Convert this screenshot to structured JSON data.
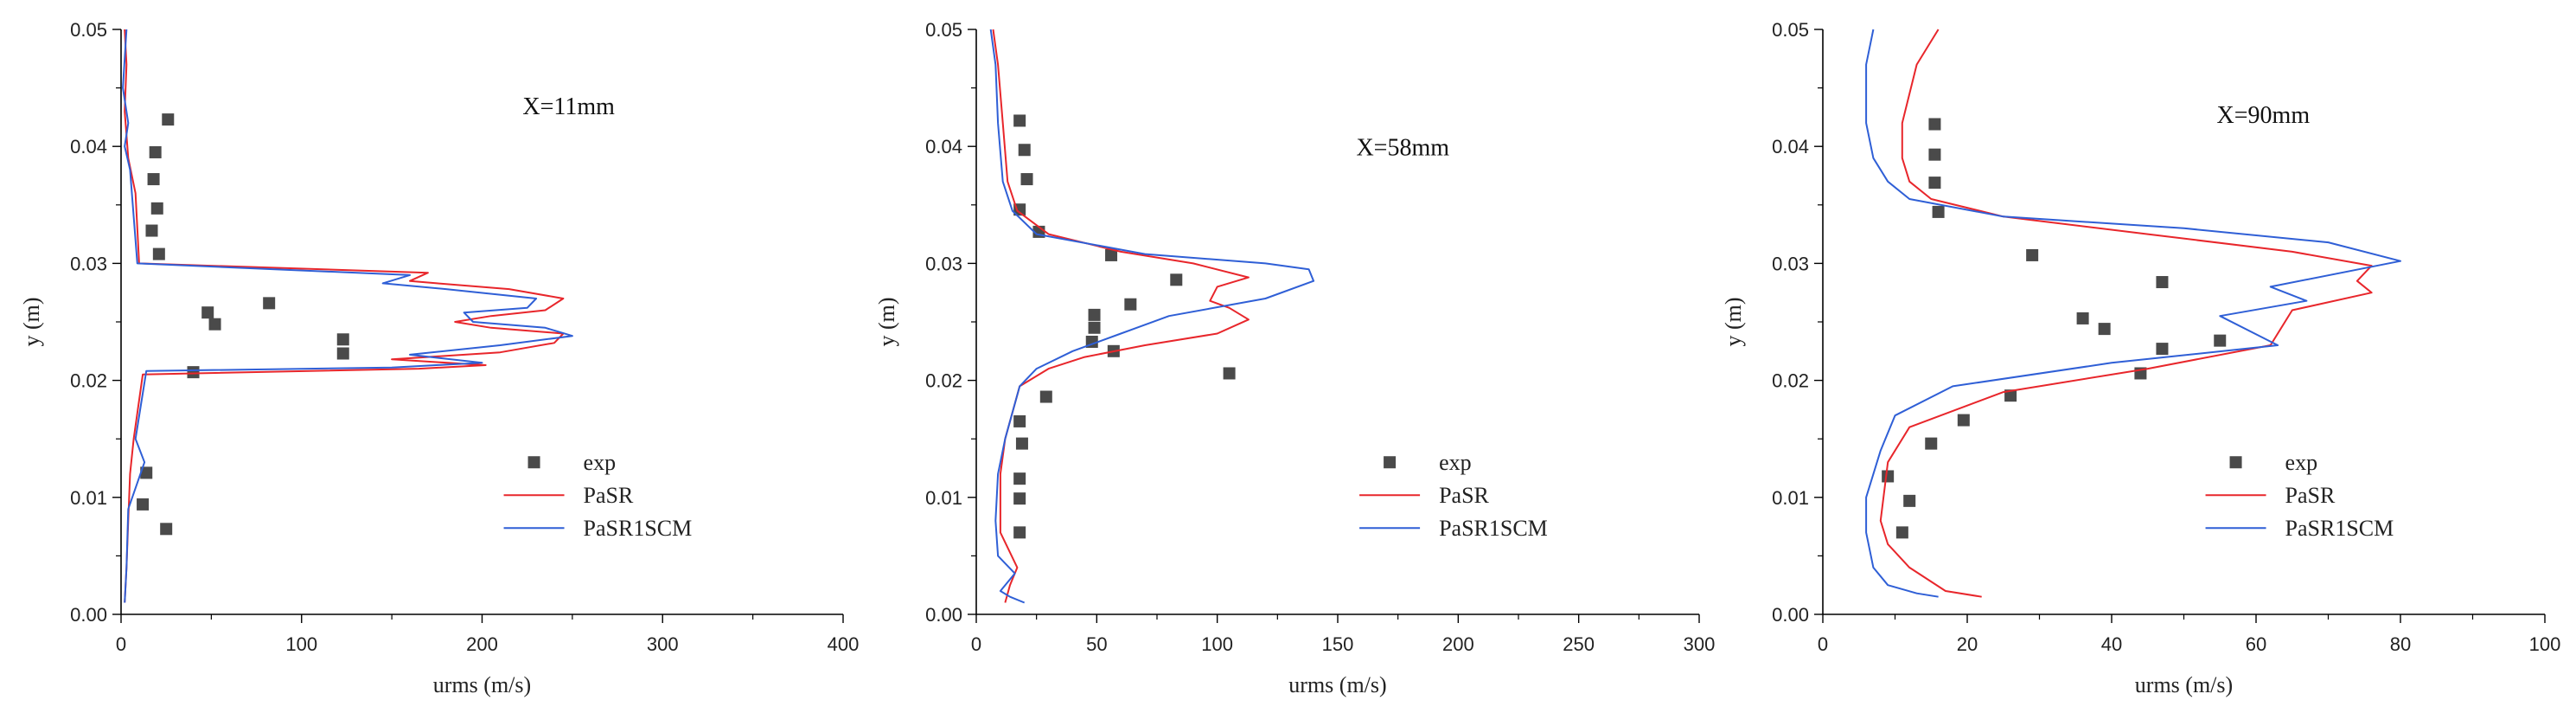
{
  "colors": {
    "exp": "#4a4a4a",
    "pasr": "#e8262b",
    "pasr1scm": "#2f5fd6",
    "axis": "#000000"
  },
  "chart_data": [
    {
      "type": "line",
      "xlabel": "urms (m/s)",
      "ylabel": "y (m)",
      "annotation": "X=11mm",
      "xlim": [
        0,
        400
      ],
      "ylim": [
        0,
        0.05
      ],
      "xticks": [
        0,
        100,
        200,
        300,
        400
      ],
      "yticks": [
        0.0,
        0.01,
        0.02,
        0.03,
        0.04,
        0.05
      ],
      "xtick_labels": [
        "0",
        "100",
        "200",
        "300",
        "400"
      ],
      "ytick_labels": [
        "0.00",
        "0.01",
        "0.02",
        "0.03",
        "0.04",
        "0.05"
      ],
      "legend": [
        "exp",
        "PaSR",
        "PaSR1SCM"
      ],
      "legend_location": "lower-right",
      "series": [
        {
          "name": "exp",
          "kind": "scatter",
          "x": [
            26,
            19,
            18,
            20,
            17,
            21,
            48,
            52,
            82,
            123,
            123,
            40,
            14,
            12,
            25
          ],
          "y": [
            0.0423,
            0.0395,
            0.0372,
            0.0347,
            0.0328,
            0.0308,
            0.0258,
            0.0248,
            0.0266,
            0.0235,
            0.0223,
            0.0207,
            0.0121,
            0.0094,
            0.0073
          ]
        },
        {
          "name": "PaSR",
          "kind": "line",
          "x": [
            2,
            3,
            2,
            4,
            8,
            10,
            170,
            160,
            175,
            215,
            245,
            235,
            205,
            185,
            205,
            245,
            240,
            210,
            150,
            202,
            165,
            12,
            7,
            5,
            4,
            3,
            2
          ],
          "y": [
            0.05,
            0.047,
            0.043,
            0.039,
            0.036,
            0.03,
            0.0292,
            0.0285,
            0.0283,
            0.0278,
            0.027,
            0.026,
            0.0255,
            0.025,
            0.0245,
            0.024,
            0.0232,
            0.0224,
            0.0218,
            0.0213,
            0.021,
            0.0205,
            0.015,
            0.012,
            0.008,
            0.004,
            0.001
          ]
        },
        {
          "name": "PaSR1SCM",
          "kind": "line",
          "x": [
            3,
            1,
            4,
            2,
            5,
            9,
            160,
            145,
            180,
            230,
            225,
            190,
            195,
            235,
            250,
            210,
            160,
            200,
            150,
            14,
            8,
            13,
            4,
            3,
            2
          ],
          "y": [
            0.05,
            0.045,
            0.042,
            0.04,
            0.038,
            0.03,
            0.029,
            0.0283,
            0.0278,
            0.027,
            0.0262,
            0.0258,
            0.025,
            0.0245,
            0.0238,
            0.023,
            0.0222,
            0.0215,
            0.0211,
            0.0208,
            0.015,
            0.013,
            0.009,
            0.004,
            0.001
          ]
        }
      ]
    },
    {
      "type": "line",
      "xlabel": "urms (m/s)",
      "ylabel": "y (m)",
      "annotation": "X=58mm",
      "xlim": [
        0,
        300
      ],
      "ylim": [
        0,
        0.05
      ],
      "xticks": [
        0,
        50,
        100,
        150,
        200,
        250,
        300
      ],
      "yticks": [
        0.0,
        0.01,
        0.02,
        0.03,
        0.04,
        0.05
      ],
      "xtick_labels": [
        "0",
        "50",
        "100",
        "150",
        "200",
        "250",
        "300"
      ],
      "ytick_labels": [
        "0.00",
        "0.01",
        "0.02",
        "0.03",
        "0.04",
        "0.05"
      ],
      "legend": [
        "exp",
        "PaSR",
        "PaSR1SCM"
      ],
      "legend_location": "lower-right",
      "series": [
        {
          "name": "exp",
          "kind": "scatter",
          "x": [
            18,
            20,
            21,
            18,
            26,
            56,
            83,
            64,
            49,
            49,
            48,
            57,
            105,
            29,
            18,
            19,
            18,
            18,
            18
          ],
          "y": [
            0.0422,
            0.0397,
            0.0372,
            0.0346,
            0.0327,
            0.0307,
            0.0286,
            0.0265,
            0.0256,
            0.0245,
            0.0233,
            0.0225,
            0.0206,
            0.0186,
            0.0165,
            0.0146,
            0.0116,
            0.0099,
            0.007
          ]
        },
        {
          "name": "PaSR",
          "kind": "line",
          "x": [
            7,
            9,
            11,
            13,
            17,
            30,
            60,
            90,
            113,
            100,
            97,
            105,
            113,
            100,
            70,
            45,
            30,
            18,
            12,
            10,
            10,
            17,
            14,
            12
          ],
          "y": [
            0.05,
            0.047,
            0.042,
            0.037,
            0.0345,
            0.0325,
            0.031,
            0.03,
            0.0288,
            0.028,
            0.0268,
            0.0262,
            0.0252,
            0.024,
            0.023,
            0.022,
            0.021,
            0.0195,
            0.015,
            0.012,
            0.007,
            0.004,
            0.0025,
            0.001
          ]
        },
        {
          "name": "PaSR1SCM",
          "kind": "line",
          "x": [
            6,
            8,
            9,
            11,
            15,
            25,
            70,
            120,
            138,
            140,
            120,
            80,
            60,
            40,
            25,
            18,
            12,
            9,
            8,
            9,
            16,
            10,
            14,
            20
          ],
          "y": [
            0.05,
            0.047,
            0.042,
            0.037,
            0.0345,
            0.0325,
            0.0308,
            0.03,
            0.0295,
            0.0285,
            0.027,
            0.0255,
            0.024,
            0.0225,
            0.021,
            0.0195,
            0.015,
            0.012,
            0.008,
            0.005,
            0.0035,
            0.002,
            0.0015,
            0.001
          ]
        }
      ]
    },
    {
      "type": "line",
      "xlabel": "urms (m/s)",
      "ylabel": "y (m)",
      "annotation": "X=90mm",
      "xlim": [
        0,
        100
      ],
      "ylim": [
        0,
        0.05
      ],
      "xticks": [
        0,
        20,
        40,
        60,
        80,
        100
      ],
      "yticks": [
        0.0,
        0.01,
        0.02,
        0.03,
        0.04,
        0.05
      ],
      "xtick_labels": [
        "0",
        "20",
        "40",
        "60",
        "80",
        "100"
      ],
      "ytick_labels": [
        "0.00",
        "0.01",
        "0.02",
        "0.03",
        "0.04",
        "0.05"
      ],
      "legend": [
        "exp",
        "PaSR",
        "PaSR1SCM"
      ],
      "legend_location": "lower-right",
      "series": [
        {
          "name": "exp",
          "kind": "scatter",
          "x": [
            15.5,
            15.5,
            15.5,
            16,
            29,
            47,
            36,
            39,
            47,
            55,
            44,
            26,
            19.5,
            15,
            12,
            9,
            11
          ],
          "y": [
            0.0419,
            0.0393,
            0.0369,
            0.0344,
            0.0307,
            0.0284,
            0.0253,
            0.0244,
            0.0227,
            0.0234,
            0.0206,
            0.0187,
            0.0166,
            0.0146,
            0.0097,
            0.0118,
            0.007
          ]
        },
        {
          "name": "PaSR",
          "kind": "line",
          "x": [
            16,
            13,
            11,
            11,
            12,
            15,
            25,
            45,
            65,
            76,
            74,
            76,
            65,
            62,
            45,
            25,
            12,
            9,
            8,
            9,
            12,
            17,
            22
          ],
          "y": [
            0.05,
            0.047,
            0.042,
            0.039,
            0.037,
            0.0355,
            0.034,
            0.0325,
            0.031,
            0.0298,
            0.0285,
            0.0275,
            0.026,
            0.023,
            0.021,
            0.019,
            0.016,
            0.013,
            0.008,
            0.006,
            0.004,
            0.002,
            0.0015
          ]
        },
        {
          "name": "PaSR1SCM",
          "kind": "line",
          "x": [
            7,
            6,
            6,
            7,
            9,
            12,
            25,
            50,
            70,
            80,
            62,
            67,
            55,
            63,
            40,
            18,
            10,
            8,
            6,
            6,
            7,
            9,
            13,
            16
          ],
          "y": [
            0.05,
            0.047,
            0.042,
            0.039,
            0.037,
            0.0355,
            0.034,
            0.033,
            0.0318,
            0.0302,
            0.028,
            0.0268,
            0.0255,
            0.023,
            0.0215,
            0.0195,
            0.017,
            0.014,
            0.01,
            0.007,
            0.004,
            0.0025,
            0.0018,
            0.0015
          ]
        }
      ]
    }
  ]
}
